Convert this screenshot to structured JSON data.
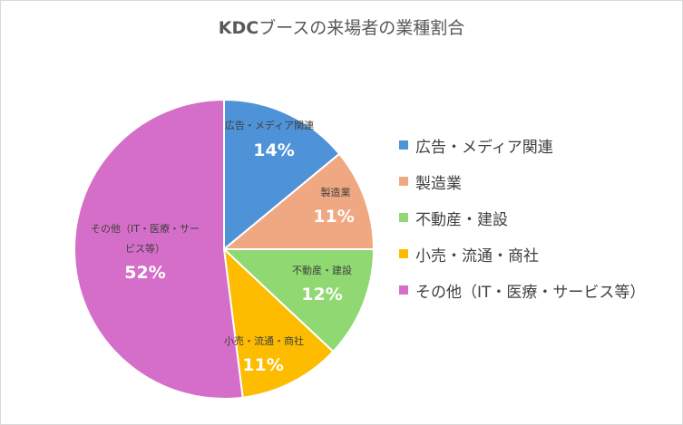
{
  "chart_data": {
    "type": "pie",
    "title": "KDCブースの来場者の業種割合",
    "categories": [
      "広告・メディア関連",
      "製造業",
      "不動産・建設",
      "小売・流通・商社",
      "その他（IT・医療・サービス等）"
    ],
    "values": [
      14,
      11,
      12,
      11,
      52
    ],
    "value_labels": [
      "14%",
      "11%",
      "12%",
      "11%",
      "52%"
    ],
    "colors": [
      "#4e92d8",
      "#f0a882",
      "#8fd872",
      "#fdbc00",
      "#d56ec8"
    ],
    "start_angle": "top (12 o'clock)",
    "direction": "clockwise",
    "legend_position": "right",
    "data_label_lines": [
      [
        "広告・メディア関連"
      ],
      [
        "製造業"
      ],
      [
        "不動産・建設"
      ],
      [
        "小売・流通・商社"
      ],
      [
        "その他（IT・医療・サー",
        "ビス等）"
      ]
    ]
  },
  "title": {
    "prefix": "KDC",
    "rest": "ブースの来場者の業種割合"
  }
}
